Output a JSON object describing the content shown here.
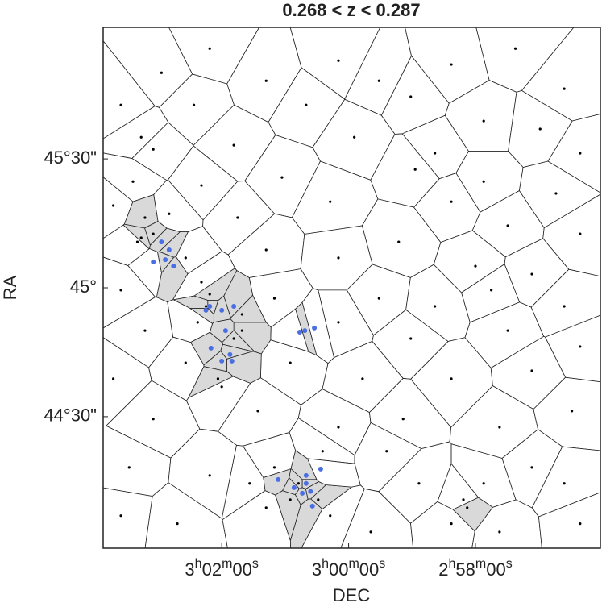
{
  "chart_data": {
    "type": "voronoi-scatter",
    "title": "0.268 < z < 0.287",
    "xlabel": "DEC",
    "ylabel": "RA",
    "xlim": [
      183.87,
      176.03
    ],
    "ylim": [
      43.99,
      46.01
    ],
    "xticks": [
      {
        "value": 182,
        "label": "3h02m00s"
      },
      {
        "value": 180,
        "label": "3h00m00s"
      },
      {
        "value": 178,
        "label": "2h58m00s"
      }
    ],
    "yticks": [
      {
        "value": 45.5,
        "label": "45°30\""
      },
      {
        "value": 45,
        "label": "45°"
      },
      {
        "value": 44.5,
        "label": "44°30\""
      }
    ],
    "grid": false,
    "series": [
      {
        "color": "#000000",
        "x": [
          182.95,
          182.19,
          181.3,
          180.16,
          179.52,
          178.38,
          177.37,
          176.6,
          183.59,
          182.44,
          180.67,
          179.02,
          177.87,
          176.98,
          183.27,
          183.08,
          181.81,
          179.91,
          178.64,
          176.35,
          183.4,
          182.32,
          181.05,
          178.95,
          177.87,
          176.73,
          183.71,
          182.83,
          181.75,
          180.29,
          179.21,
          178.38,
          177.49,
          176.35,
          183.27,
          182.57,
          181.3,
          180.16,
          178.0,
          177.11,
          183.59,
          182.32,
          182.19,
          181.68,
          181.17,
          179.52,
          178.64,
          177.75,
          176.6,
          183.21,
          181.68,
          180.16,
          179.02,
          177.49,
          176.35,
          183.71,
          182.57,
          182.06,
          180.92,
          179.78,
          178.38,
          177.11,
          183.08,
          181.43,
          180.16,
          179.14,
          177.62,
          176.48,
          183.46,
          182.19,
          181.56,
          181.17,
          180.41,
          179.4,
          178.89,
          177.87,
          177.11,
          176.6,
          183.59,
          182.7,
          181.3,
          180.92,
          180.29,
          179.65,
          178.38,
          178.13,
          177.62,
          176.35,
          183.21,
          183.08,
          183.33,
          182.25,
          182.38,
          181.81,
          182.0,
          180.79,
          180.48,
          178.19
        ],
        "y": [
          45.834,
          45.928,
          45.803,
          45.881,
          45.803,
          45.866,
          45.928,
          45.772,
          45.709,
          45.709,
          45.709,
          45.741,
          45.647,
          45.616,
          45.584,
          45.537,
          45.553,
          45.584,
          45.522,
          45.522,
          45.412,
          45.397,
          45.428,
          45.459,
          45.412,
          45.366,
          45.319,
          45.287,
          45.272,
          45.334,
          45.178,
          45.334,
          45.241,
          45.209,
          45.194,
          45.116,
          45.147,
          45.116,
          45.084,
          45.053,
          44.991,
          45.022,
          44.975,
          44.897,
          44.959,
          44.959,
          44.928,
          44.991,
          44.928,
          44.834,
          44.834,
          44.866,
          44.803,
          44.834,
          44.772,
          44.647,
          44.709,
          44.647,
          44.709,
          44.647,
          44.647,
          44.678,
          44.491,
          44.522,
          44.459,
          44.491,
          44.459,
          44.522,
          44.303,
          44.272,
          44.241,
          44.303,
          44.366,
          44.366,
          44.241,
          44.241,
          44.303,
          44.241,
          44.116,
          44.085,
          44.147,
          44.178,
          44.116,
          44.053,
          44.085,
          44.147,
          44.053,
          44.085,
          45.272,
          45.209,
          45.178,
          44.928,
          44.866,
          44.803,
          44.616,
          44.241,
          44.178,
          44.178
        ]
      },
      {
        "color": "#4a6fe3",
        "x": [
          182.95,
          182.83,
          183.08,
          182.89,
          182.76,
          182.19,
          182.0,
          181.81,
          182.25,
          181.94,
          182.17,
          181.87,
          182.0,
          181.84,
          180.77,
          180.69,
          180.54,
          181.11,
          180.86,
          180.67,
          180.6,
          180.73,
          180.57,
          180.44,
          180.67
        ],
        "y": [
          45.178,
          45.147,
          45.1,
          45.109,
          45.084,
          44.928,
          44.913,
          44.928,
          44.913,
          44.834,
          44.766,
          44.741,
          44.716,
          44.716,
          44.828,
          44.834,
          44.844,
          44.256,
          44.225,
          44.241,
          44.21,
          44.203,
          44.153,
          44.297,
          44.272
        ]
      }
    ]
  }
}
